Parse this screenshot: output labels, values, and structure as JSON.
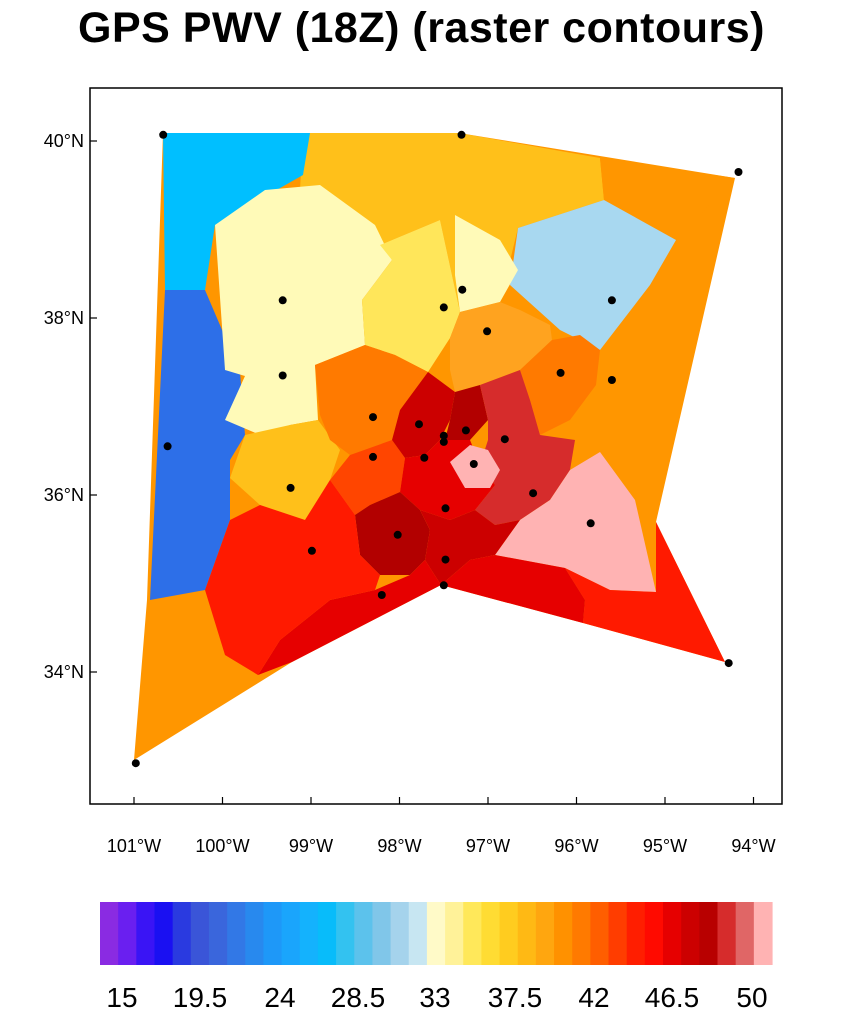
{
  "title": "GPS PWV (18Z) (raster contours)",
  "map": {
    "lat_labels": [
      "40°N",
      "38°N",
      "36°N",
      "34°N"
    ],
    "lon_labels": [
      "101°W",
      "100°W",
      "99°W",
      "98°W",
      "97°W",
      "96°W",
      "95°W",
      "94°W"
    ],
    "colors": {
      "c15": "#8a2be2",
      "deep_blue": "#2d6fe8",
      "sky_blue": "#00bfff",
      "light_blue": "#a8d8f0",
      "pale_yellow": "#fffab8",
      "yellow": "#ffe65a",
      "gold": "#ffc01a",
      "light_orange": "#ffa31f",
      "orange": "#ff9600",
      "dark_orange": "#ff7a00",
      "red_orange": "#ff4500",
      "red": "#ff1a00",
      "bright_red": "#e60000",
      "dark_red": "#cc0000",
      "deep_red": "#b20000",
      "brick": "#d62c2c",
      "pink": "#ffb3b3"
    },
    "stations": [
      {
        "lon": -100.67,
        "lat": 40.07
      },
      {
        "lon": -97.3,
        "lat": 40.07
      },
      {
        "lon": -94.17,
        "lat": 39.65
      },
      {
        "lon": -99.32,
        "lat": 38.2
      },
      {
        "lon": -97.29,
        "lat": 38.32
      },
      {
        "lon": -97.5,
        "lat": 38.12
      },
      {
        "lon": -95.6,
        "lat": 38.2
      },
      {
        "lon": -97.01,
        "lat": 37.85
      },
      {
        "lon": -99.32,
        "lat": 37.35
      },
      {
        "lon": -96.18,
        "lat": 37.38
      },
      {
        "lon": -95.6,
        "lat": 37.3
      },
      {
        "lon": -98.3,
        "lat": 36.88
      },
      {
        "lon": -97.78,
        "lat": 36.8
      },
      {
        "lon": -97.5,
        "lat": 36.67
      },
      {
        "lon": -97.25,
        "lat": 36.73
      },
      {
        "lon": -97.5,
        "lat": 36.6
      },
      {
        "lon": -96.81,
        "lat": 36.63
      },
      {
        "lon": -100.62,
        "lat": 36.55
      },
      {
        "lon": -98.3,
        "lat": 36.43
      },
      {
        "lon": -97.72,
        "lat": 36.42
      },
      {
        "lon": -97.16,
        "lat": 36.35
      },
      {
        "lon": -99.23,
        "lat": 36.08
      },
      {
        "lon": -96.49,
        "lat": 36.02
      },
      {
        "lon": -97.48,
        "lat": 35.85
      },
      {
        "lon": -95.84,
        "lat": 35.68
      },
      {
        "lon": -98.02,
        "lat": 35.55
      },
      {
        "lon": -98.99,
        "lat": 35.37
      },
      {
        "lon": -97.48,
        "lat": 35.27
      },
      {
        "lon": -97.5,
        "lat": 34.98
      },
      {
        "lon": -98.2,
        "lat": 34.87
      },
      {
        "lon": -94.28,
        "lat": 34.1
      },
      {
        "lon": -100.98,
        "lat": 32.97
      }
    ]
  },
  "colorbar": {
    "labels": [
      "15",
      "19.5",
      "24",
      "28.5",
      "33",
      "37.5",
      "42",
      "46.5",
      "50"
    ],
    "colors": [
      "#8a2be2",
      "#6a1ff0",
      "#3a14f5",
      "#1a10f2",
      "#2a3ae0",
      "#3a55d8",
      "#3a66dc",
      "#3278e6",
      "#2889ee",
      "#1e98f8",
      "#1aa5fc",
      "#14b2fd",
      "#08bcfa",
      "#33c2f0",
      "#5cc2ec",
      "#80c6e9",
      "#a5d3ec",
      "#c7e6f2",
      "#fffac8",
      "#fff299",
      "#ffe85a",
      "#ffdc33",
      "#ffcc1f",
      "#ffb914",
      "#ffa60f",
      "#ff9100",
      "#ff7a00",
      "#ff5e00",
      "#ff3d00",
      "#ff1e00",
      "#ff0a00",
      "#e60000",
      "#cc0000",
      "#b80000",
      "#d62c2c",
      "#e06666",
      "#ffb3b3"
    ]
  }
}
